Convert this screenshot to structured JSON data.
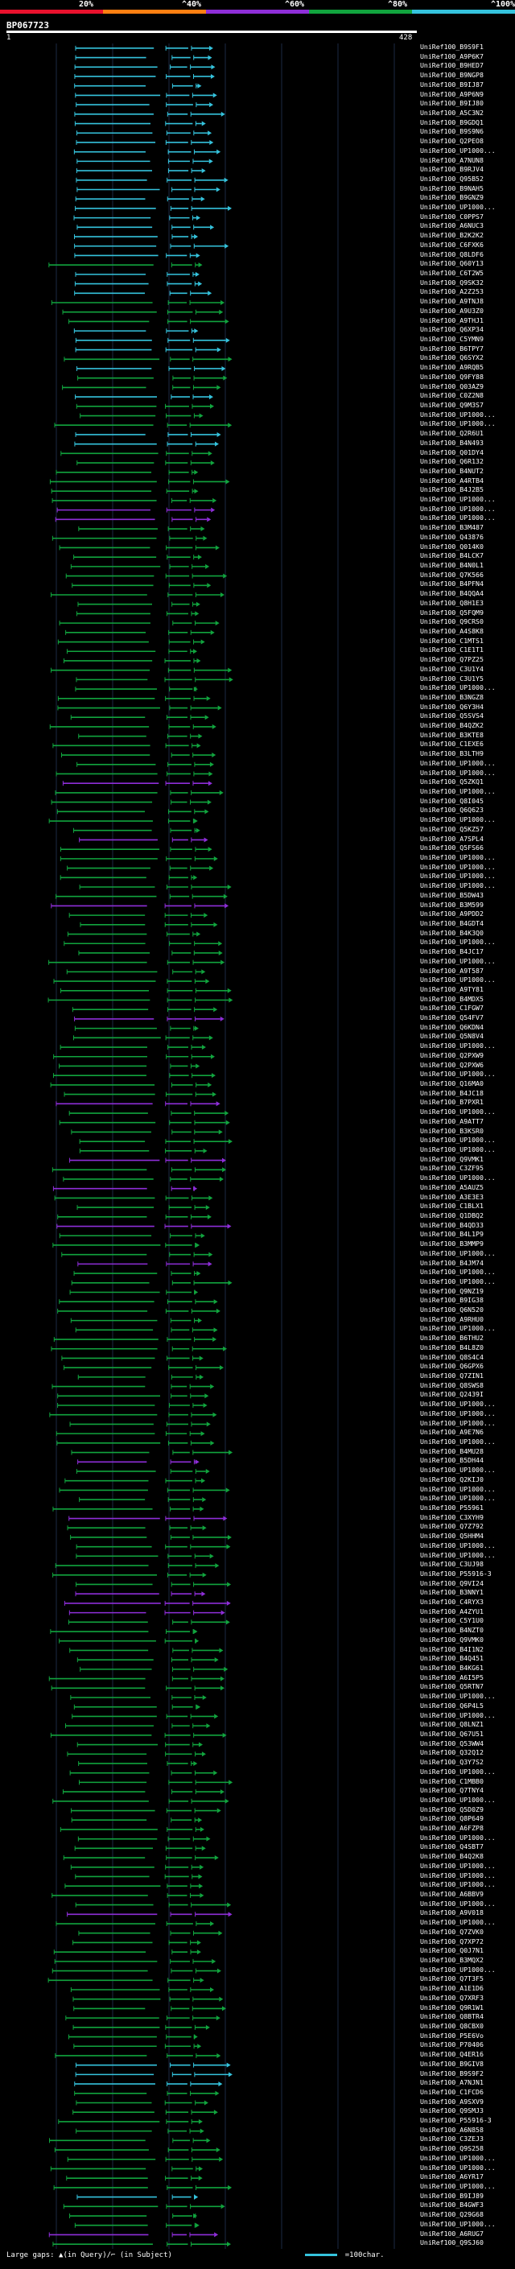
{
  "header": {
    "scale_labels": [
      "20%",
      "^40%",
      "^60%",
      "^80%",
      "^100%"
    ],
    "scale_colors": [
      "#e8112d",
      "#ff7f11",
      "#8e2ed8",
      "#11a43e",
      "#35c3dd"
    ],
    "query_id": "BP067723",
    "start_pos": "1",
    "end_pos": "428",
    "query_length": 428
  },
  "hits": [
    {
      "id": "UniRef100_B9S9F1",
      "color": "#35c3dd"
    },
    {
      "id": "UniRef100_A9P6K7",
      "color": "#35c3dd"
    },
    {
      "id": "UniRef100_B9HED7",
      "color": "#35c3dd"
    },
    {
      "id": "UniRef100_B9NGP8",
      "color": "#35c3dd"
    },
    {
      "id": "UniRef100_B9IJ87",
      "color": "#35c3dd"
    },
    {
      "id": "UniRef100_A9P6N9",
      "color": "#35c3dd"
    },
    {
      "id": "UniRef100_B9IJ80",
      "color": "#35c3dd"
    },
    {
      "id": "UniRef100_A5C3N2",
      "color": "#35c3dd"
    },
    {
      "id": "UniRef100_B9GDQ1",
      "color": "#35c3dd"
    },
    {
      "id": "UniRef100_B9S9N6",
      "color": "#35c3dd"
    },
    {
      "id": "UniRef100_Q2PEO8",
      "color": "#35c3dd"
    },
    {
      "id": "UniRef100_UP1000...",
      "color": "#35c3dd"
    },
    {
      "id": "UniRef100_A7NUN8",
      "color": "#35c3dd"
    },
    {
      "id": "UniRef100_B9RJV4",
      "color": "#35c3dd"
    },
    {
      "id": "UniRef100_Q95B52",
      "color": "#35c3dd"
    },
    {
      "id": "UniRef100_B9NAH5",
      "color": "#35c3dd"
    },
    {
      "id": "UniRef100_B9GNZ9",
      "color": "#35c3dd"
    },
    {
      "id": "UniRef100_UP1000...",
      "color": "#35c3dd"
    },
    {
      "id": "UniRef100_C0PPS7",
      "color": "#35c3dd"
    },
    {
      "id": "UniRef100_A6NUC3",
      "color": "#35c3dd"
    },
    {
      "id": "UniRef100_B2K2K2",
      "color": "#35c3dd"
    },
    {
      "id": "UniRef100_C6FXK6",
      "color": "#35c3dd"
    },
    {
      "id": "UniRef100_Q8LDF6",
      "color": "#35c3dd"
    },
    {
      "id": "UniRef100_Q60Y13",
      "color": "#11a43e"
    },
    {
      "id": "UniRef100_C6T2W5",
      "color": "#35c3dd"
    },
    {
      "id": "UniRef100_Q9SK32",
      "color": "#35c3dd"
    },
    {
      "id": "UniRef100_A2Z253",
      "color": "#35c3dd"
    },
    {
      "id": "UniRef100_A9TNJ8",
      "color": "#11a43e"
    },
    {
      "id": "UniRef100_A9U3Z0",
      "color": "#11a43e"
    },
    {
      "id": "UniRef100_A9THJ1",
      "color": "#11a43e"
    },
    {
      "id": "UniRef100_Q6XP34",
      "color": "#35c3dd"
    },
    {
      "id": "UniRef100_C5YMN9",
      "color": "#35c3dd"
    },
    {
      "id": "UniRef100_B6TPY7",
      "color": "#35c3dd"
    },
    {
      "id": "UniRef100_Q6SYX2",
      "color": "#11a43e"
    },
    {
      "id": "UniRef100_A9RQB5",
      "color": "#35c3dd"
    },
    {
      "id": "UniRef100_Q9FY88",
      "color": "#11a43e"
    },
    {
      "id": "UniRef100_Q03AZ9",
      "color": "#11a43e"
    },
    {
      "id": "UniRef100_C0Z2N8",
      "color": "#35c3dd"
    },
    {
      "id": "UniRef100_Q9M3S7",
      "color": "#11a43e"
    },
    {
      "id": "UniRef100_UP1000...",
      "color": "#11a43e"
    },
    {
      "id": "UniRef100_UP1000...",
      "color": "#11a43e"
    },
    {
      "id": "UniRef100_Q2R6U1",
      "color": "#35c3dd"
    },
    {
      "id": "UniRef100_B4N493",
      "color": "#35c3dd"
    },
    {
      "id": "UniRef100_Q01DY4",
      "color": "#11a43e"
    },
    {
      "id": "UniRef100_Q6R132",
      "color": "#11a43e"
    },
    {
      "id": "UniRef100_B4NUT2",
      "color": "#11a43e"
    },
    {
      "id": "UniRef100_A4RTB4",
      "color": "#11a43e"
    },
    {
      "id": "UniRef100_B4J2B5",
      "color": "#11a43e"
    },
    {
      "id": "UniRef100_UP1000...",
      "color": "#11a43e"
    },
    {
      "id": "UniRef100_UP1000...",
      "color": "#8e2ed8"
    },
    {
      "id": "UniRef100_UP1000...",
      "color": "#8e2ed8"
    },
    {
      "id": "UniRef100_B3M487",
      "color": "#11a43e"
    },
    {
      "id": "UniRef100_Q43876",
      "color": "#11a43e"
    },
    {
      "id": "UniRef100_Q014K0",
      "color": "#11a43e"
    },
    {
      "id": "UniRef100_B4LCK7",
      "color": "#11a43e"
    },
    {
      "id": "UniRef100_B4N0L1",
      "color": "#11a43e"
    },
    {
      "id": "UniRef100_Q7K566",
      "color": "#11a43e"
    },
    {
      "id": "UniRef100_B4PFN4",
      "color": "#11a43e"
    },
    {
      "id": "UniRef100_B4QQA4",
      "color": "#11a43e"
    },
    {
      "id": "UniRef100_Q8H1E3",
      "color": "#11a43e"
    },
    {
      "id": "UniRef100_Q5FQM9",
      "color": "#11a43e"
    },
    {
      "id": "UniRef100_Q9CRS0",
      "color": "#11a43e"
    },
    {
      "id": "UniRef100_A4S8K8",
      "color": "#11a43e"
    },
    {
      "id": "UniRef100_C1MTS1",
      "color": "#11a43e"
    },
    {
      "id": "UniRef100_C1E1T1",
      "color": "#11a43e"
    },
    {
      "id": "UniRef100_Q7PZ25",
      "color": "#11a43e"
    },
    {
      "id": "UniRef100_C3U1Y4",
      "color": "#11a43e"
    },
    {
      "id": "UniRef100_C3U1Y5",
      "color": "#11a43e"
    },
    {
      "id": "UniRef100_UP1000...",
      "color": "#11a43e"
    },
    {
      "id": "UniRef100_B3NGZ8",
      "color": "#11a43e"
    },
    {
      "id": "UniRef100_Q6Y3H4",
      "color": "#11a43e"
    },
    {
      "id": "UniRef100_Q5SVS4",
      "color": "#11a43e"
    },
    {
      "id": "UniRef100_B4QZK2",
      "color": "#11a43e"
    },
    {
      "id": "UniRef100_B3KTE8",
      "color": "#11a43e"
    },
    {
      "id": "UniRef100_C1EXE6",
      "color": "#11a43e"
    },
    {
      "id": "UniRef100_B3LTH9",
      "color": "#11a43e"
    },
    {
      "id": "UniRef100_UP1000...",
      "color": "#11a43e"
    },
    {
      "id": "UniRef100_UP1000...",
      "color": "#11a43e"
    },
    {
      "id": "UniRef100_Q5ZKQ1",
      "color": "#8e2ed8"
    },
    {
      "id": "UniRef100_UP1000...",
      "color": "#11a43e"
    },
    {
      "id": "UniRef100_Q8I045",
      "color": "#11a43e"
    },
    {
      "id": "UniRef100_Q6Q623",
      "color": "#11a43e"
    },
    {
      "id": "UniRef100_UP1000...",
      "color": "#11a43e"
    },
    {
      "id": "UniRef100_Q5KZ57",
      "color": "#11a43e"
    },
    {
      "id": "UniRef100_A7SPL4",
      "color": "#8e2ed8"
    },
    {
      "id": "UniRef100_Q5FS66",
      "color": "#11a43e"
    },
    {
      "id": "UniRef100_UP1000...",
      "color": "#11a43e"
    },
    {
      "id": "UniRef100_UP1000...",
      "color": "#11a43e"
    },
    {
      "id": "UniRef100_UP1000...",
      "color": "#11a43e"
    },
    {
      "id": "UniRef100_UP1000...",
      "color": "#11a43e"
    },
    {
      "id": "UniRef100_B5DW43",
      "color": "#11a43e"
    },
    {
      "id": "UniRef100_B3M599",
      "color": "#8e2ed8"
    },
    {
      "id": "UniRef100_A9PDD2",
      "color": "#11a43e"
    },
    {
      "id": "UniRef100_B4GDT4",
      "color": "#11a43e"
    },
    {
      "id": "UniRef100_B4K3Q0",
      "color": "#11a43e"
    },
    {
      "id": "UniRef100_UP1000...",
      "color": "#11a43e"
    },
    {
      "id": "UniRef100_B4JC17",
      "color": "#11a43e"
    },
    {
      "id": "UniRef100_UP1000...",
      "color": "#11a43e"
    },
    {
      "id": "UniRef100_A9T587",
      "color": "#11a43e"
    },
    {
      "id": "UniRef100_UP1000...",
      "color": "#11a43e"
    },
    {
      "id": "UniRef100_A9TY81",
      "color": "#11a43e"
    },
    {
      "id": "UniRef100_B4MDX5",
      "color": "#11a43e"
    },
    {
      "id": "UniRef100_C1FGW7",
      "color": "#11a43e"
    },
    {
      "id": "UniRef100_Q54FV7",
      "color": "#8e2ed8"
    },
    {
      "id": "UniRef100_Q6KDN4",
      "color": "#11a43e"
    },
    {
      "id": "UniRef100_Q5N8V4",
      "color": "#11a43e"
    },
    {
      "id": "UniRef100_UP1000...",
      "color": "#11a43e"
    },
    {
      "id": "UniRef100_Q2PXW9",
      "color": "#11a43e"
    },
    {
      "id": "UniRef100_Q2PXW6",
      "color": "#11a43e"
    },
    {
      "id": "UniRef100_UP1000...",
      "color": "#11a43e"
    },
    {
      "id": "UniRef100_Q16MA0",
      "color": "#11a43e"
    },
    {
      "id": "UniRef100_B4JC18",
      "color": "#11a43e"
    },
    {
      "id": "UniRef100_B7PXR1",
      "color": "#8e2ed8"
    },
    {
      "id": "UniRef100_UP1000...",
      "color": "#11a43e"
    },
    {
      "id": "UniRef100_A9ATT7",
      "color": "#11a43e"
    },
    {
      "id": "UniRef100_B3KSR0",
      "color": "#11a43e"
    },
    {
      "id": "UniRef100_UP1000...",
      "color": "#11a43e"
    },
    {
      "id": "UniRef100_UP1000...",
      "color": "#11a43e"
    },
    {
      "id": "UniRef100_Q9VMK1",
      "color": "#8e2ed8"
    },
    {
      "id": "UniRef100_C3ZF95",
      "color": "#11a43e"
    },
    {
      "id": "UniRef100_UP1000...",
      "color": "#11a43e"
    },
    {
      "id": "UniRef100_A5AUZ5",
      "color": "#8e2ed8"
    },
    {
      "id": "UniRef100_A3E3E3",
      "color": "#11a43e"
    },
    {
      "id": "UniRef100_C1BLX1",
      "color": "#11a43e"
    },
    {
      "id": "UniRef100_Q1DBQ2",
      "color": "#11a43e"
    },
    {
      "id": "UniRef100_B4QD33",
      "color": "#8e2ed8"
    },
    {
      "id": "UniRef100_B4L1P9",
      "color": "#11a43e"
    },
    {
      "id": "UniRef100_B3MMP9",
      "color": "#11a43e"
    },
    {
      "id": "UniRef100_UP1000...",
      "color": "#11a43e"
    },
    {
      "id": "UniRef100_B4JM74",
      "color": "#8e2ed8"
    },
    {
      "id": "UniRef100_UP1000...",
      "color": "#11a43e"
    },
    {
      "id": "UniRef100_UP1000...",
      "color": "#11a43e"
    },
    {
      "id": "UniRef100_Q9NZ19",
      "color": "#11a43e"
    },
    {
      "id": "UniRef100_B9IG38",
      "color": "#11a43e"
    },
    {
      "id": "UniRef100_Q6N520",
      "color": "#11a43e"
    },
    {
      "id": "UniRef100_A9RHU0",
      "color": "#11a43e"
    },
    {
      "id": "UniRef100_UP1000...",
      "color": "#11a43e"
    },
    {
      "id": "UniRef100_B6THU2",
      "color": "#11a43e"
    },
    {
      "id": "UniRef100_B4L8Z0",
      "color": "#11a43e"
    },
    {
      "id": "UniRef100_Q8S4C4",
      "color": "#11a43e"
    },
    {
      "id": "UniRef100_Q6GPX6",
      "color": "#11a43e"
    },
    {
      "id": "UniRef100_Q7ZIN1",
      "color": "#11a43e"
    },
    {
      "id": "UniRef100_Q8SWS8",
      "color": "#11a43e"
    },
    {
      "id": "UniRef100_Q2439I",
      "color": "#11a43e"
    },
    {
      "id": "UniRef100_UP1000...",
      "color": "#11a43e"
    },
    {
      "id": "UniRef100_UP1000...",
      "color": "#11a43e"
    },
    {
      "id": "UniRef100_UP1000...",
      "color": "#11a43e"
    },
    {
      "id": "UniRef100_A9E7N6",
      "color": "#11a43e"
    },
    {
      "id": "UniRef100_UP1000...",
      "color": "#11a43e"
    },
    {
      "id": "UniRef100_B4MU28",
      "color": "#11a43e"
    },
    {
      "id": "UniRef100_B5DH44",
      "color": "#8e2ed8"
    },
    {
      "id": "UniRef100_UP1000...",
      "color": "#11a43e"
    },
    {
      "id": "UniRef100_Q2KIJ0",
      "color": "#11a43e"
    },
    {
      "id": "UniRef100_UP1000...",
      "color": "#11a43e"
    },
    {
      "id": "UniRef100_UP1000...",
      "color": "#11a43e"
    },
    {
      "id": "UniRef100_P55961",
      "color": "#11a43e"
    },
    {
      "id": "UniRef100_C3XYH9",
      "color": "#8e2ed8"
    },
    {
      "id": "UniRef100_Q7Z792",
      "color": "#11a43e"
    },
    {
      "id": "UniRef100_Q5HHM4",
      "color": "#11a43e"
    },
    {
      "id": "UniRef100_UP1000...",
      "color": "#11a43e"
    },
    {
      "id": "UniRef100_UP1000...",
      "color": "#11a43e"
    },
    {
      "id": "UniRef100_C3UJ98",
      "color": "#11a43e"
    },
    {
      "id": "UniRef100_P55916-3",
      "color": "#11a43e"
    },
    {
      "id": "UniRef100_Q9VI24",
      "color": "#11a43e"
    },
    {
      "id": "UniRef100_B3NNY1",
      "color": "#8e2ed8"
    },
    {
      "id": "UniRef100_C4RYX3",
      "color": "#8e2ed8"
    },
    {
      "id": "UniRef100_A4ZYU1",
      "color": "#8e2ed8"
    },
    {
      "id": "UniRef100_C5Y1U0",
      "color": "#11a43e"
    },
    {
      "id": "UniRef100_B4NZT0",
      "color": "#11a43e"
    },
    {
      "id": "UniRef100_Q9VMK0",
      "color": "#11a43e"
    },
    {
      "id": "UniRef100_B4I1N2",
      "color": "#11a43e"
    },
    {
      "id": "UniRef100_B4Q451",
      "color": "#11a43e"
    },
    {
      "id": "UniRef100_B4KG61",
      "color": "#11a43e"
    },
    {
      "id": "UniRef100_A6I5P5",
      "color": "#11a43e"
    },
    {
      "id": "UniRef100_Q5RTN7",
      "color": "#11a43e"
    },
    {
      "id": "UniRef100_UP1000...",
      "color": "#11a43e"
    },
    {
      "id": "UniRef100_Q6P4L5",
      "color": "#11a43e"
    },
    {
      "id": "UniRef100_UP1000...",
      "color": "#11a43e"
    },
    {
      "id": "UniRef100_Q8LNZ1",
      "color": "#11a43e"
    },
    {
      "id": "UniRef100_Q67U51",
      "color": "#11a43e"
    },
    {
      "id": "UniRef100_Q53WW4",
      "color": "#11a43e"
    },
    {
      "id": "UniRef100_Q32Q12",
      "color": "#11a43e"
    },
    {
      "id": "UniRef100_Q3Y7S2",
      "color": "#11a43e"
    },
    {
      "id": "UniRef100_UP1000...",
      "color": "#11a43e"
    },
    {
      "id": "UniRef100_C1MBB0",
      "color": "#11a43e"
    },
    {
      "id": "UniRef100_Q7TNY4",
      "color": "#11a43e"
    },
    {
      "id": "UniRef100_UP1000...",
      "color": "#11a43e"
    },
    {
      "id": "UniRef100_Q5D0Z9",
      "color": "#11a43e"
    },
    {
      "id": "UniRef100_Q8P649",
      "color": "#11a43e"
    },
    {
      "id": "UniRef100_A6FZP8",
      "color": "#11a43e"
    },
    {
      "id": "UniRef100_UP1000...",
      "color": "#11a43e"
    },
    {
      "id": "UniRef100_Q4SBT7",
      "color": "#11a43e"
    },
    {
      "id": "UniRef100_B4Q2K8",
      "color": "#11a43e"
    },
    {
      "id": "UniRef100_UP1000...",
      "color": "#11a43e"
    },
    {
      "id": "UniRef100_UP1000...",
      "color": "#11a43e"
    },
    {
      "id": "UniRef100_UP1000...",
      "color": "#11a43e"
    },
    {
      "id": "UniRef100_A6BBV9",
      "color": "#11a43e"
    },
    {
      "id": "UniRef100_UP1000...",
      "color": "#11a43e"
    },
    {
      "id": "UniRef100_A9V018",
      "color": "#8e2ed8"
    },
    {
      "id": "UniRef100_UP1000...",
      "color": "#11a43e"
    },
    {
      "id": "UniRef100_Q7ZVK0",
      "color": "#11a43e"
    },
    {
      "id": "UniRef100_Q7XP72",
      "color": "#11a43e"
    },
    {
      "id": "UniRef100_Q0J7N1",
      "color": "#11a43e"
    },
    {
      "id": "UniRef100_B3MQX2",
      "color": "#11a43e"
    },
    {
      "id": "UniRef100_UP1000...",
      "color": "#11a43e"
    },
    {
      "id": "UniRef100_Q7T3F5",
      "color": "#11a43e"
    },
    {
      "id": "UniRef100_A1E1D6",
      "color": "#11a43e"
    },
    {
      "id": "UniRef100_Q7XRF3",
      "color": "#11a43e"
    },
    {
      "id": "UniRef100_Q9R1W1",
      "color": "#11a43e"
    },
    {
      "id": "UniRef100_Q8BTR4",
      "color": "#11a43e"
    },
    {
      "id": "UniRef100_Q8CBX0",
      "color": "#11a43e"
    },
    {
      "id": "UniRef100_P5E6Vo",
      "color": "#11a43e"
    },
    {
      "id": "UniRef100_P70406",
      "color": "#11a43e"
    },
    {
      "id": "UniRef100_Q4ER16",
      "color": "#11a43e"
    },
    {
      "id": "UniRef100_B9GIV8",
      "color": "#35c3dd"
    },
    {
      "id": "UniRef100_B9S9F2",
      "color": "#35c3dd"
    },
    {
      "id": "UniRef100_A7NJN1",
      "color": "#35c3dd"
    },
    {
      "id": "UniRef100_C1FCD6",
      "color": "#11a43e"
    },
    {
      "id": "UniRef100_A9SXV9",
      "color": "#11a43e"
    },
    {
      "id": "UniRef100_Q9SMJ3",
      "color": "#11a43e"
    },
    {
      "id": "UniRef100_P55916-3",
      "color": "#11a43e"
    },
    {
      "id": "UniRef100_A6N858",
      "color": "#11a43e"
    },
    {
      "id": "UniRef100_C3ZEJ3",
      "color": "#11a43e"
    },
    {
      "id": "UniRef100_Q9S258",
      "color": "#11a43e"
    },
    {
      "id": "UniRef100_UP1000...",
      "color": "#11a43e"
    },
    {
      "id": "UniRef100_UP1000...",
      "color": "#11a43e"
    },
    {
      "id": "UniRef100_A6YR17",
      "color": "#11a43e"
    },
    {
      "id": "UniRef100_UP1000...",
      "color": "#11a43e"
    },
    {
      "id": "UniRef100_B9IJ89",
      "color": "#35c3dd"
    },
    {
      "id": "UniRef100_B4GWF3",
      "color": "#11a43e"
    },
    {
      "id": "UniRef100_Q29G68",
      "color": "#11a43e"
    },
    {
      "id": "UniRef100_UP1000...",
      "color": "#11a43e"
    },
    {
      "id": "UniRef100_A6RUG7",
      "color": "#8e2ed8"
    },
    {
      "id": "UniRef100_Q9SJ60",
      "color": "#11a43e"
    }
  ],
  "footer": {
    "legend_text": "Large gaps: ▲(in Query)/⌐ (in Subject)",
    "scale_text": "=100char."
  }
}
